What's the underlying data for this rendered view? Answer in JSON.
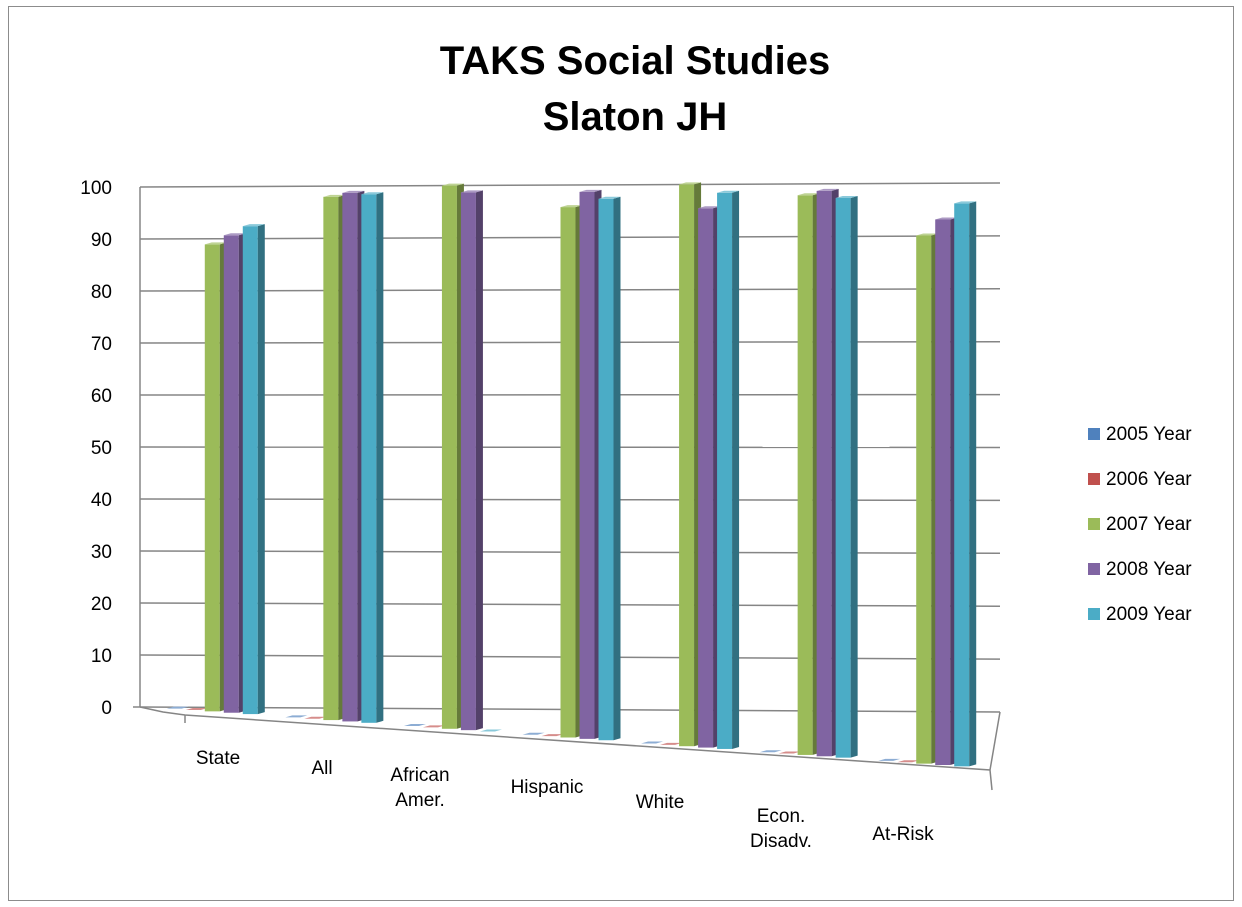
{
  "chart_data": {
    "type": "bar",
    "title": [
      "TAKS Social Studies",
      "Slaton JH"
    ],
    "categories": [
      [
        "State"
      ],
      [
        "All"
      ],
      [
        "African",
        "Amer."
      ],
      [
        "Hispanic"
      ],
      [
        "White"
      ],
      [
        "Econ.",
        "Disadv."
      ],
      [
        "At-Risk"
      ]
    ],
    "series": [
      {
        "name": "2005 Year",
        "color": "#4f81bd",
        "values": [
          0,
          0,
          0,
          0,
          0,
          0,
          0
        ]
      },
      {
        "name": "2006 Year",
        "color": "#c0504d",
        "values": [
          0,
          0,
          0,
          0,
          0,
          0,
          0
        ]
      },
      {
        "name": "2007 Year",
        "color": "#9bbb59",
        "values": [
          89,
          98,
          100,
          96,
          100,
          98,
          91
        ]
      },
      {
        "name": "2008 Year",
        "color": "#8064a2",
        "values": [
          91,
          99,
          99,
          99,
          96,
          99,
          94
        ]
      },
      {
        "name": "2009 Year",
        "color": "#4bacc6",
        "values": [
          93,
          99,
          0,
          98,
          99,
          98,
          97
        ]
      }
    ],
    "ylim": [
      0,
      100
    ],
    "yticks": [
      "0",
      "10",
      "20",
      "30",
      "40",
      "50",
      "60",
      "70",
      "80",
      "90",
      "100"
    ],
    "grid": true,
    "legend": "right",
    "perspective": "3d-clustered"
  }
}
